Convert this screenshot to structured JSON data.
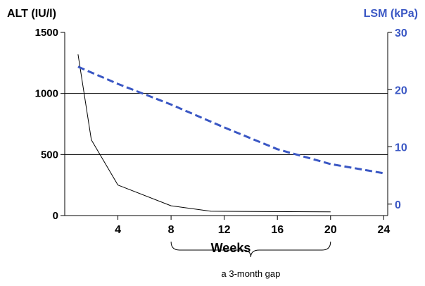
{
  "chart_data": {
    "type": "line",
    "title": "",
    "xlabel": "Weeks",
    "y_left_label": "ALT (IU/l)",
    "y_right_label": "LSM (kPa)",
    "x_ticks": [
      4,
      8,
      12,
      16,
      20,
      24
    ],
    "x_tick_labels": [
      "4",
      "8",
      "12",
      "16",
      "20",
      "24"
    ],
    "xlim": [
      0,
      24.3
    ],
    "y_left_ticks": [
      0,
      500,
      1000,
      1500
    ],
    "y_left_tick_labels": [
      "0",
      "500",
      "1000",
      "1500"
    ],
    "y_left_lim": [
      0,
      1500
    ],
    "y_right_ticks": [
      0,
      10,
      20,
      30
    ],
    "y_right_tick_labels": [
      "0",
      "10",
      "20",
      "30"
    ],
    "y_right_lim": [
      -2,
      30
    ],
    "grid": "horizontal at 500, 1000",
    "series": [
      {
        "axis": "left",
        "color": "#000000",
        "style": "solid",
        "x": [
          1,
          2,
          4,
          8,
          11,
          20
        ],
        "y": [
          1320,
          620,
          250,
          80,
          35,
          30
        ]
      },
      {
        "axis": "right",
        "color": "#3a57c4",
        "style": "dashed",
        "x": [
          1,
          4,
          8,
          12,
          16,
          20,
          24
        ],
        "y": [
          24,
          21,
          17.4,
          13.4,
          9.6,
          7,
          5.4
        ]
      }
    ],
    "annotation": {
      "text": "a 3-month gap",
      "x_range": [
        8,
        20
      ]
    },
    "colors": {
      "axis": "#000000",
      "right_axis": "#3a57c4",
      "grid": "#000000"
    }
  }
}
